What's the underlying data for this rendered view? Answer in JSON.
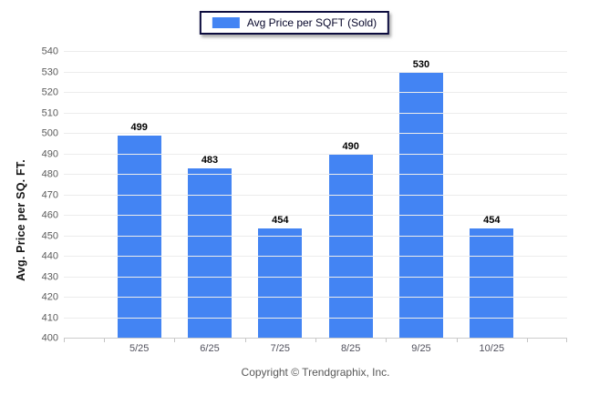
{
  "chart_data": {
    "type": "bar",
    "title": "",
    "legend": "Avg Price per SQFT (Sold)",
    "categories": [
      "5/25",
      "6/25",
      "7/25",
      "8/25",
      "9/25",
      "10/25"
    ],
    "values": [
      499,
      483,
      454,
      490,
      530,
      454
    ],
    "xlabel": "",
    "ylabel": "Avg. Price per SQ. FT.",
    "ylim": [
      400,
      540
    ],
    "ytick_step": 10,
    "grid": "horizontal",
    "legend_position": "top-center",
    "bar_color": "#4384F3",
    "footer": "Copyright © Trendgraphix, Inc."
  }
}
